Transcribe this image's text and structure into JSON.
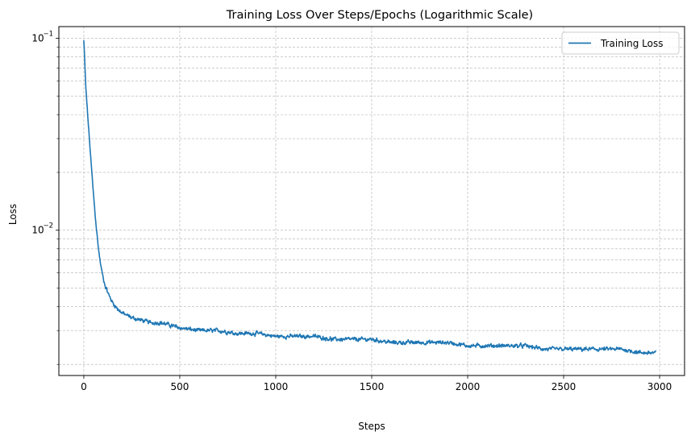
{
  "chart_data": {
    "type": "line",
    "title": "Training Loss Over Steps/Epochs (Logarithmic Scale)",
    "xlabel": "Steps",
    "ylabel": "Loss",
    "xlim": [
      -130,
      3130
    ],
    "ylim": [
      0.00175,
      0.115
    ],
    "yscale": "log",
    "grid": true,
    "legend_position": "top-right",
    "xticks": [
      0,
      500,
      1000,
      1500,
      2000,
      2500,
      3000
    ],
    "xtick_labels": [
      "0",
      "500",
      "1000",
      "1500",
      "2000",
      "2500",
      "3000"
    ],
    "yticks": [
      0.01,
      0.1
    ],
    "ytick_labels": [
      {
        "base": "10",
        "exp": "−2"
      },
      {
        "base": "10",
        "exp": "−1"
      }
    ],
    "y_minor_ticks": [
      0.002,
      0.003,
      0.004,
      0.005,
      0.006,
      0.007,
      0.008,
      0.009,
      0.02,
      0.03,
      0.04,
      0.05,
      0.06,
      0.07,
      0.08,
      0.09
    ],
    "series": [
      {
        "name": "Training Loss",
        "color": "#1f77b4",
        "noise": 0.035,
        "x": [
          0,
          5,
          10,
          20,
          30,
          40,
          50,
          60,
          70,
          80,
          90,
          100,
          110,
          130,
          150,
          175,
          200,
          250,
          300,
          350,
          400,
          450,
          500,
          600,
          700,
          800,
          900,
          1000,
          1100,
          1200,
          1300,
          1400,
          1500,
          1600,
          1700,
          1800,
          1900,
          2000,
          2100,
          2200,
          2300,
          2400,
          2500,
          2600,
          2700,
          2800,
          2900,
          2980
        ],
        "y": [
          0.097,
          0.075,
          0.056,
          0.04,
          0.029,
          0.021,
          0.0155,
          0.0118,
          0.0092,
          0.0075,
          0.0064,
          0.0057,
          0.0052,
          0.0046,
          0.0042,
          0.0039,
          0.0037,
          0.0035,
          0.0034,
          0.0033,
          0.0033,
          0.0032,
          0.0031,
          0.003,
          0.003,
          0.0029,
          0.0029,
          0.0028,
          0.0028,
          0.0028,
          0.0027,
          0.0027,
          0.0027,
          0.0026,
          0.0026,
          0.0026,
          0.0026,
          0.0025,
          0.0025,
          0.0025,
          0.0025,
          0.0024,
          0.0024,
          0.0024,
          0.0024,
          0.0024,
          0.0023,
          0.0023
        ]
      }
    ]
  }
}
